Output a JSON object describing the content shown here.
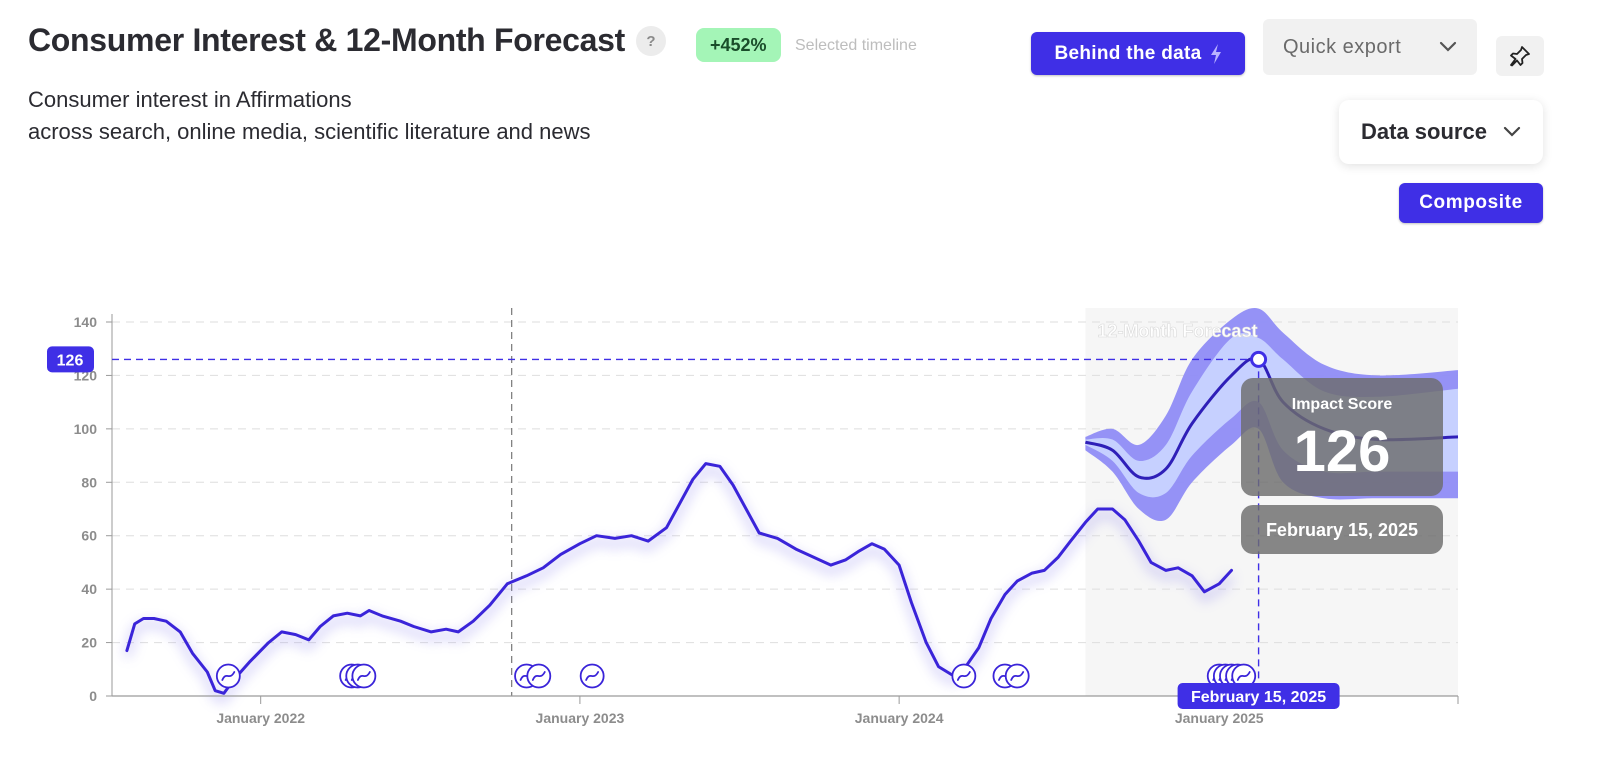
{
  "header": {
    "title": "Consumer Interest & 12-Month Forecast",
    "help_label": "?",
    "growth_badge": "+452%",
    "badge_note": "Selected timeline",
    "subtitle_line1": "Consumer interest in Affirmations",
    "subtitle_line2": "across search, online media, scientific literature and news"
  },
  "toolbar": {
    "behind_label": "Behind the data",
    "export_label": "Quick export",
    "data_source_label": "Data source",
    "composite_label": "Composite"
  },
  "colors": {
    "accent": "#3f2fe6",
    "line": "#3a24d9",
    "badge_bg": "#a4f5b7",
    "forecast_band_outer": "#8f8cf5",
    "forecast_band_inner": "#c8d4ff",
    "forecast_bg": "#f6f6f6"
  },
  "chart_data": {
    "type": "line",
    "yticks": [
      0,
      20,
      40,
      60,
      80,
      100,
      120,
      140
    ],
    "ylim": [
      0,
      140
    ],
    "xtick_labels": [
      {
        "date": "2022-01-01",
        "label": "January 2022"
      },
      {
        "date": "2023-01-01",
        "label": "January 2023"
      },
      {
        "date": "2024-01-01",
        "label": "January 2024"
      },
      {
        "date": "2025-01-01",
        "label": "January 2025"
      }
    ],
    "xlim": [
      "2021-07-15",
      "2025-10-01"
    ],
    "forecast": {
      "label": "12-Month Forecast",
      "start": "2024-08-01",
      "points": [
        [
          "2024-08-01",
          95,
          94,
          96,
          92,
          97
        ],
        [
          "2024-09-01",
          92,
          88,
          96,
          84,
          100
        ],
        [
          "2024-10-01",
          82,
          76,
          88,
          70,
          94
        ],
        [
          "2024-11-01",
          85,
          76,
          94,
          66,
          105
        ],
        [
          "2024-12-01",
          102,
          90,
          114,
          80,
          126
        ],
        [
          "2025-01-15",
          120,
          104,
          134,
          94,
          141
        ],
        [
          "2025-02-15",
          126,
          110,
          134,
          100,
          145
        ],
        [
          "2025-03-15",
          110,
          92,
          126,
          80,
          136
        ],
        [
          "2025-05-01",
          100,
          84,
          114,
          74,
          124
        ],
        [
          "2025-07-01",
          96,
          84,
          112,
          74,
          120
        ],
        [
          "2025-10-01",
          97,
          84,
          115,
          74,
          122
        ]
      ]
    },
    "series": [
      {
        "values": [
          [
            "2021-08-01",
            17
          ],
          [
            "2021-08-10",
            27
          ],
          [
            "2021-08-20",
            29
          ],
          [
            "2021-09-01",
            29
          ],
          [
            "2021-09-15",
            28
          ],
          [
            "2021-10-01",
            24
          ],
          [
            "2021-10-15",
            16
          ],
          [
            "2021-11-01",
            9
          ],
          [
            "2021-11-10",
            2
          ],
          [
            "2021-11-20",
            1
          ],
          [
            "2021-12-01",
            6
          ],
          [
            "2021-12-20",
            13
          ],
          [
            "2022-01-10",
            20
          ],
          [
            "2022-01-25",
            24
          ],
          [
            "2022-02-10",
            23
          ],
          [
            "2022-02-25",
            21
          ],
          [
            "2022-03-10",
            26
          ],
          [
            "2022-03-25",
            30
          ],
          [
            "2022-04-10",
            31
          ],
          [
            "2022-04-25",
            30
          ],
          [
            "2022-05-05",
            32
          ],
          [
            "2022-05-20",
            30
          ],
          [
            "2022-06-10",
            28
          ],
          [
            "2022-06-25",
            26
          ],
          [
            "2022-07-15",
            24
          ],
          [
            "2022-08-01",
            25
          ],
          [
            "2022-08-15",
            24
          ],
          [
            "2022-09-01",
            28
          ],
          [
            "2022-09-20",
            34
          ],
          [
            "2022-10-10",
            42
          ],
          [
            "2022-11-01",
            45
          ],
          [
            "2022-11-20",
            48
          ],
          [
            "2022-12-10",
            53
          ],
          [
            "2023-01-01",
            57
          ],
          [
            "2023-01-20",
            60
          ],
          [
            "2023-02-10",
            59
          ],
          [
            "2023-03-01",
            60
          ],
          [
            "2023-03-20",
            58
          ],
          [
            "2023-04-10",
            63
          ],
          [
            "2023-04-25",
            72
          ],
          [
            "2023-05-10",
            81
          ],
          [
            "2023-05-25",
            87
          ],
          [
            "2023-06-10",
            86
          ],
          [
            "2023-06-25",
            79
          ],
          [
            "2023-07-10",
            70
          ],
          [
            "2023-07-25",
            61
          ],
          [
            "2023-08-15",
            59
          ],
          [
            "2023-09-05",
            55
          ],
          [
            "2023-09-25",
            52
          ],
          [
            "2023-10-15",
            49
          ],
          [
            "2023-11-01",
            51
          ],
          [
            "2023-11-15",
            54
          ],
          [
            "2023-12-01",
            57
          ],
          [
            "2023-12-15",
            55
          ],
          [
            "2024-01-01",
            49
          ],
          [
            "2024-01-15",
            35
          ],
          [
            "2024-02-01",
            20
          ],
          [
            "2024-02-15",
            11
          ],
          [
            "2024-03-01",
            8
          ],
          [
            "2024-03-15",
            10
          ],
          [
            "2024-04-01",
            18
          ],
          [
            "2024-04-15",
            29
          ],
          [
            "2024-05-01",
            38
          ],
          [
            "2024-05-15",
            43
          ],
          [
            "2024-06-01",
            46
          ],
          [
            "2024-06-15",
            47
          ],
          [
            "2024-07-01",
            52
          ],
          [
            "2024-07-15",
            58
          ],
          [
            "2024-08-01",
            65
          ],
          [
            "2024-08-15",
            70
          ],
          [
            "2024-09-01",
            70
          ],
          [
            "2024-09-15",
            66
          ],
          [
            "2024-10-01",
            58
          ],
          [
            "2024-10-15",
            50
          ],
          [
            "2024-11-01",
            47
          ],
          [
            "2024-11-15",
            48
          ],
          [
            "2024-12-01",
            45
          ],
          [
            "2024-12-15",
            39
          ],
          [
            "2025-01-01",
            42
          ],
          [
            "2025-01-15",
            47
          ]
        ]
      }
    ],
    "event_markers": [
      "2021-11-25",
      "2022-04-15",
      "2022-04-22",
      "2022-04-29",
      "2022-11-01",
      "2022-11-15",
      "2023-01-15",
      "2024-03-15",
      "2024-05-01",
      "2024-05-15",
      "2025-01-01",
      "2025-01-08",
      "2025-01-15",
      "2025-01-22",
      "2025-01-29"
    ],
    "highlight": {
      "date": "2025-02-15",
      "value": 126,
      "value_label": "126",
      "tooltip_title": "Impact Score",
      "tooltip_value": "126",
      "tooltip_date": "February 15, 2025",
      "axis_date_label": "February 15, 2025"
    },
    "divider_date": "2022-10-15",
    "grid": true
  }
}
